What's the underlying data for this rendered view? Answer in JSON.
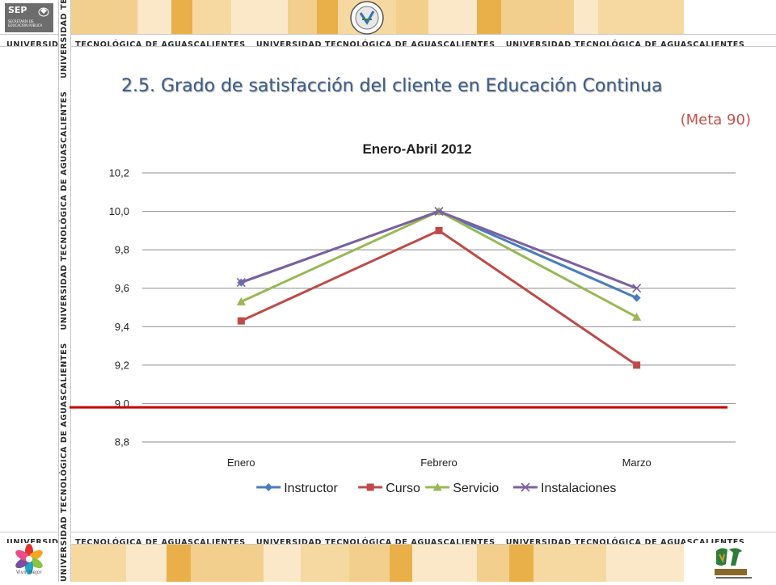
{
  "branding": {
    "strip_text": "UNIVERSIDAD TECNOLÓGICA DE AGUASCALIENTES",
    "sep_word": "SEP",
    "sep_subtitle": "SECRETARÍA DE\nEDUCACIÓN PÚBLICA",
    "vivir_mejor": "Vivir Mejor",
    "colors": {
      "band": "#f3cf8e",
      "band_light": "#fae8c8",
      "band_dark": "#e9b04a"
    }
  },
  "slide": {
    "title": "2.5. Grado de satisfacción del cliente en Educación Continua",
    "subtitle": "(Meta 90)"
  },
  "chart_data": {
    "type": "line",
    "title": "Enero-Abril 2012",
    "xlabel": "",
    "ylabel": "",
    "categories": [
      "Enero",
      "Febrero",
      "Marzo"
    ],
    "ylim": [
      8.8,
      10.2
    ],
    "yticks": [
      8.8,
      9.0,
      9.2,
      9.4,
      9.6,
      9.8,
      10.0,
      10.2
    ],
    "ytick_labels": [
      "8,8",
      "9,0",
      "9,2",
      "9,4",
      "9,6",
      "9,8",
      "10,0",
      "10,2"
    ],
    "grid": true,
    "legend_position": "bottom",
    "series": [
      {
        "name": "Instructor",
        "values": [
          9.63,
          10.0,
          9.55
        ],
        "color": "#4a7ebb",
        "marker": "diamond"
      },
      {
        "name": "Curso",
        "values": [
          9.43,
          9.9,
          9.2
        ],
        "color": "#be4b48",
        "marker": "square"
      },
      {
        "name": "Servicio",
        "values": [
          9.53,
          10.0,
          9.45
        ],
        "color": "#98b954",
        "marker": "triangle"
      },
      {
        "name": "Instalaciones",
        "values": [
          9.63,
          10.0,
          9.6
        ],
        "color": "#7d60a0",
        "marker": "x"
      }
    ],
    "reference_line": {
      "value": 8.98,
      "color": "#cc0000"
    }
  }
}
